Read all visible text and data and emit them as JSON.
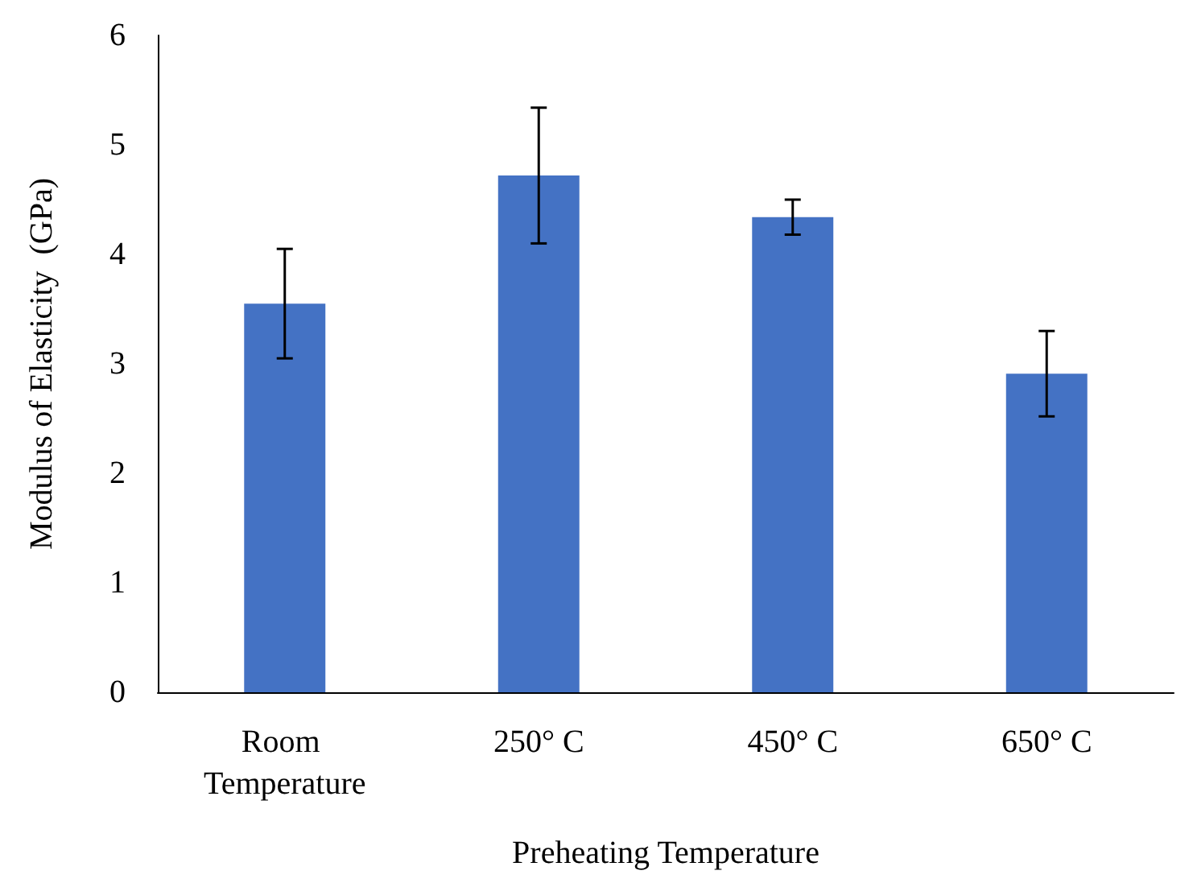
{
  "chart_data": {
    "type": "bar",
    "xlabel": "Preheating Temperature",
    "ylabel": "Modulus of Elasticity  (GPa)",
    "categories": [
      "Room Temperature",
      "250° C",
      "450° C",
      "650° C"
    ],
    "values": [
      3.55,
      4.72,
      4.34,
      2.91
    ],
    "errors": [
      0.5,
      0.62,
      0.16,
      0.39
    ],
    "color": "#4472c4",
    "ylim": [
      0,
      6
    ],
    "yticks": [
      0,
      1,
      2,
      3,
      4,
      5,
      6
    ],
    "grid": false
  }
}
